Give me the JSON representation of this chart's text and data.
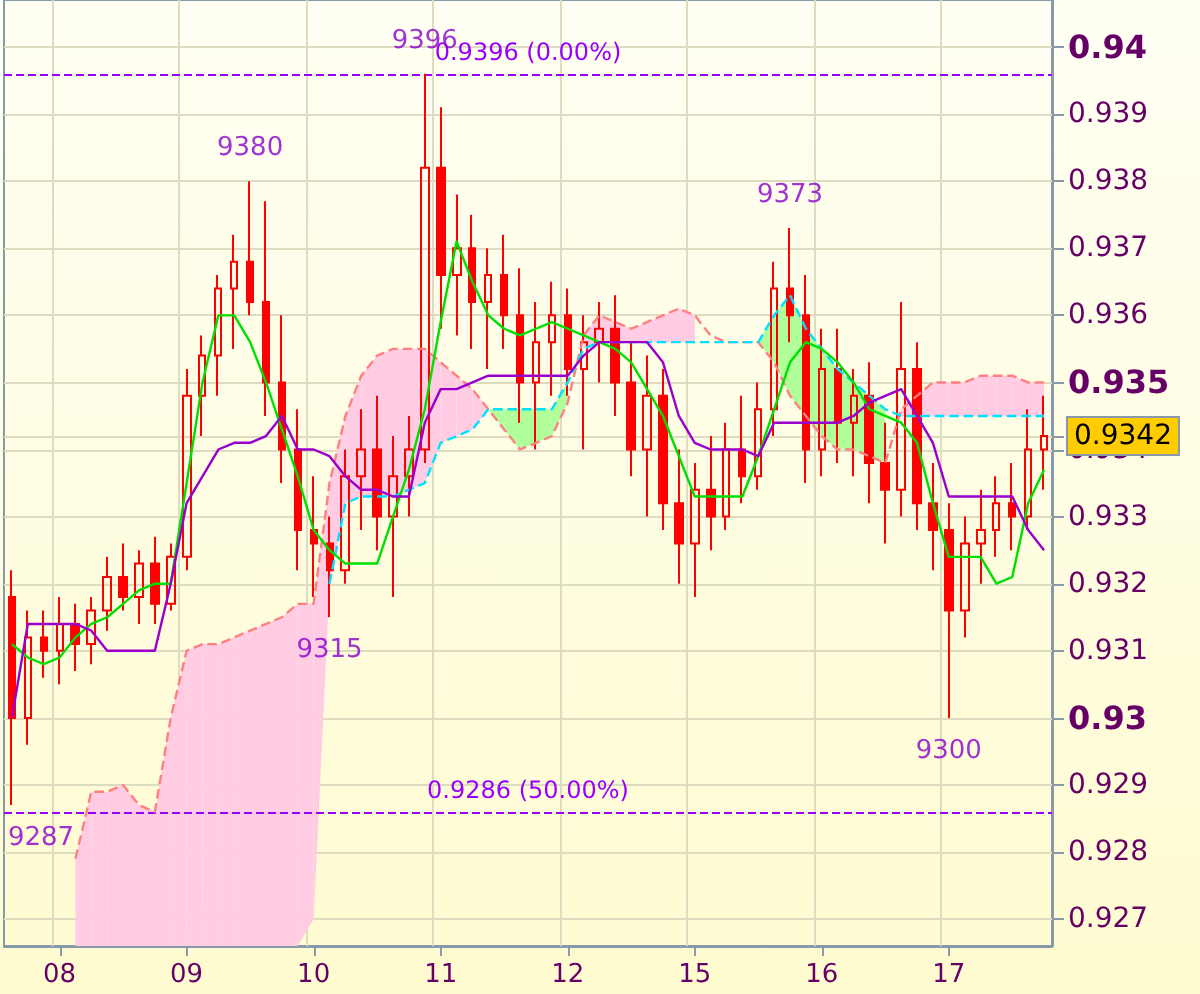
{
  "chart_data": {
    "type": "candlestick",
    "color": "#ff0000",
    "categories": [
      null,
      null,
      null,
      "08",
      null,
      null,
      null,
      null,
      null,
      null,
      null,
      "09",
      null,
      null,
      null,
      null,
      null,
      null,
      null,
      "10",
      null,
      null,
      null,
      null,
      null,
      null,
      null,
      "11",
      null,
      null,
      null,
      null,
      null,
      null,
      null,
      "12",
      null,
      null,
      null,
      null,
      null,
      null,
      null,
      "15",
      null,
      null,
      null,
      null,
      null,
      null,
      null,
      "16",
      null,
      null,
      null,
      null,
      null,
      null,
      null,
      "17",
      null,
      null,
      null,
      null,
      null,
      null
    ],
    "ohlc": [
      [
        0.9318,
        0.9322,
        0.9287,
        0.93
      ],
      [
        0.93,
        0.9316,
        0.9296,
        0.9312
      ],
      [
        0.9312,
        0.9316,
        0.9306,
        0.931
      ],
      [
        0.931,
        0.9318,
        0.9305,
        0.9314
      ],
      [
        0.9314,
        0.9317,
        0.9307,
        0.9311
      ],
      [
        0.9311,
        0.9318,
        0.9308,
        0.9316
      ],
      [
        0.9316,
        0.9324,
        0.9313,
        0.9321
      ],
      [
        0.9321,
        0.9326,
        0.9316,
        0.9318
      ],
      [
        0.9318,
        0.9325,
        0.9314,
        0.9323
      ],
      [
        0.9323,
        0.9327,
        0.9314,
        0.9317
      ],
      [
        0.9317,
        0.9326,
        0.9316,
        0.9324
      ],
      [
        0.9324,
        0.9352,
        0.9322,
        0.9348
      ],
      [
        0.9348,
        0.9357,
        0.9342,
        0.9354
      ],
      [
        0.9354,
        0.9366,
        0.9348,
        0.9364
      ],
      [
        0.9364,
        0.9372,
        0.9355,
        0.9368
      ],
      [
        0.9368,
        0.938,
        0.936,
        0.9362
      ],
      [
        0.9362,
        0.9377,
        0.9345,
        0.935
      ],
      [
        0.935,
        0.936,
        0.9335,
        0.934
      ],
      [
        0.934,
        0.9346,
        0.9322,
        0.9328
      ],
      [
        0.9328,
        0.9336,
        0.9318,
        0.9326
      ],
      [
        0.9326,
        0.933,
        0.9315,
        0.9322
      ],
      [
        0.9322,
        0.934,
        0.932,
        0.9336
      ],
      [
        0.9336,
        0.9346,
        0.9328,
        0.934
      ],
      [
        0.934,
        0.9348,
        0.9325,
        0.933
      ],
      [
        0.933,
        0.9342,
        0.9318,
        0.9336
      ],
      [
        0.9336,
        0.9345,
        0.933,
        0.934
      ],
      [
        0.934,
        0.9396,
        0.9338,
        0.9382
      ],
      [
        0.9382,
        0.9391,
        0.9358,
        0.9366
      ],
      [
        0.9366,
        0.9378,
        0.9357,
        0.937
      ],
      [
        0.937,
        0.9375,
        0.9355,
        0.9362
      ],
      [
        0.9362,
        0.937,
        0.9352,
        0.9366
      ],
      [
        0.9366,
        0.9372,
        0.9355,
        0.936
      ],
      [
        0.936,
        0.9367,
        0.9344,
        0.935
      ],
      [
        0.935,
        0.9362,
        0.934,
        0.9356
      ],
      [
        0.9356,
        0.9365,
        0.9348,
        0.936
      ],
      [
        0.936,
        0.9364,
        0.9348,
        0.9352
      ],
      [
        0.9352,
        0.936,
        0.934,
        0.9356
      ],
      [
        0.9356,
        0.9362,
        0.935,
        0.9358
      ],
      [
        0.9358,
        0.9363,
        0.9345,
        0.935
      ],
      [
        0.935,
        0.9356,
        0.9336,
        0.934
      ],
      [
        0.934,
        0.9354,
        0.933,
        0.9348
      ],
      [
        0.9348,
        0.9352,
        0.9328,
        0.9332
      ],
      [
        0.9332,
        0.934,
        0.932,
        0.9326
      ],
      [
        0.9326,
        0.9338,
        0.9318,
        0.9334
      ],
      [
        0.9334,
        0.9342,
        0.9325,
        0.933
      ],
      [
        0.933,
        0.9344,
        0.9328,
        0.934
      ],
      [
        0.934,
        0.9348,
        0.9332,
        0.9336
      ],
      [
        0.9336,
        0.935,
        0.9334,
        0.9346
      ],
      [
        0.9346,
        0.9368,
        0.9342,
        0.9364
      ],
      [
        0.9364,
        0.9373,
        0.9356,
        0.936
      ],
      [
        0.936,
        0.9366,
        0.9335,
        0.934
      ],
      [
        0.934,
        0.9358,
        0.9336,
        0.9352
      ],
      [
        0.9352,
        0.9358,
        0.9338,
        0.9344
      ],
      [
        0.9344,
        0.9352,
        0.9336,
        0.9348
      ],
      [
        0.9348,
        0.9353,
        0.9332,
        0.9338
      ],
      [
        0.9338,
        0.9344,
        0.9326,
        0.9334
      ],
      [
        0.9334,
        0.9362,
        0.933,
        0.9352
      ],
      [
        0.9352,
        0.9356,
        0.9328,
        0.9332
      ],
      [
        0.9332,
        0.9338,
        0.9322,
        0.9328
      ],
      [
        0.9328,
        0.9332,
        0.93,
        0.9316
      ],
      [
        0.9316,
        0.933,
        0.9312,
        0.9326
      ],
      [
        0.9326,
        0.9334,
        0.932,
        0.9328
      ],
      [
        0.9328,
        0.9336,
        0.9324,
        0.9332
      ],
      [
        0.9332,
        0.9338,
        0.9325,
        0.933
      ],
      [
        0.933,
        0.9346,
        0.9328,
        0.934
      ],
      [
        0.934,
        0.9348,
        0.9334,
        0.9342
      ]
    ],
    "series": [
      {
        "type": "line",
        "line_style": "dashed",
        "color": "#ff8080",
        "values": [
          null,
          null,
          null,
          null,
          0.9279,
          0.9289,
          0.9289,
          0.929,
          0.9287,
          0.9286,
          0.93,
          0.931,
          0.9311,
          0.9311,
          0.9312,
          0.9313,
          0.9314,
          0.9315,
          0.9317,
          0.9317,
          0.9335,
          0.9345,
          0.9351,
          0.9354,
          0.9355,
          0.9355,
          0.9355,
          0.9353,
          0.9351,
          0.9349,
          0.9346,
          0.9343,
          0.934,
          0.9341,
          0.9342,
          0.9347,
          0.9357,
          0.936,
          0.9359,
          0.9358,
          0.9359,
          0.936,
          0.9361,
          0.936,
          0.9357,
          0.9356,
          0.9356,
          0.9356,
          0.9353,
          0.9348,
          0.9345,
          0.9342,
          0.934,
          0.934,
          0.9339,
          0.9338,
          0.9346,
          0.9348,
          0.935,
          0.935,
          0.935,
          0.9351,
          0.9351,
          0.9351,
          0.935,
          0.935
        ],
        "lower": [
          null,
          null,
          null,
          null,
          0.9266,
          0.9266,
          0.9266,
          0.9266,
          0.9266,
          0.9266,
          0.9266,
          0.9266,
          0.9266,
          0.9266,
          0.9266,
          0.9266,
          0.9266,
          0.9266,
          0.9266,
          0.927,
          0.932,
          0.9332,
          0.9333,
          0.9333,
          0.9333,
          0.9334,
          0.9335,
          0.9341,
          0.9342,
          0.9343,
          0.9346,
          null,
          null,
          null,
          null,
          null,
          0.9355,
          0.9356,
          0.9356,
          0.9356,
          0.9356,
          0.9356,
          0.9356,
          0.9356,
          null,
          null,
          null,
          null,
          null,
          null,
          null,
          null,
          null,
          null,
          null,
          null,
          0.9345,
          0.9345,
          0.9345,
          0.9345,
          0.9345,
          0.9345,
          0.9345,
          0.9345,
          0.9345,
          0.9345
        ],
        "upper": [
          null,
          null,
          null,
          null,
          0.9279,
          0.9289,
          0.9289,
          0.929,
          0.9287,
          0.9286,
          0.93,
          0.931,
          0.9311,
          0.9311,
          0.9312,
          0.9313,
          0.9314,
          0.9315,
          0.9317,
          0.9317,
          0.9335,
          0.9345,
          0.9351,
          0.9354,
          0.9355,
          0.9355,
          0.9355,
          0.9353,
          0.9351,
          0.9349,
          0.9346,
          null,
          null,
          null,
          null,
          null,
          0.9357,
          0.936,
          0.9359,
          0.9358,
          0.9359,
          0.936,
          0.9361,
          0.936,
          null,
          null,
          null,
          null,
          null,
          null,
          null,
          null,
          null,
          null,
          null,
          null,
          0.9346,
          0.9348,
          0.935,
          0.935,
          0.935,
          0.9351,
          0.9351,
          0.9351,
          0.935,
          0.935
        ]
      },
      {
        "type": "line",
        "line_style": "dashed",
        "color": "#00e0ff",
        "values": [
          null,
          null,
          null,
          null,
          null,
          null,
          null,
          null,
          null,
          null,
          null,
          null,
          null,
          null,
          null,
          null,
          null,
          null,
          null,
          null,
          0.932,
          0.9332,
          0.9333,
          0.9333,
          0.9333,
          0.9334,
          0.9335,
          0.9341,
          0.9342,
          0.9343,
          0.9346,
          0.9346,
          0.9346,
          0.9346,
          0.9346,
          0.935,
          0.9355,
          0.9356,
          0.9356,
          0.9356,
          0.9356,
          0.9356,
          0.9356,
          0.9356,
          0.9356,
          0.9356,
          0.9356,
          0.9356,
          0.936,
          0.9363,
          0.9358,
          0.9355,
          0.9352,
          0.935,
          0.9348,
          0.9346,
          0.9345,
          0.9345,
          0.9345,
          0.9345,
          0.9345,
          0.9345,
          0.9345,
          0.9345,
          0.9345,
          0.9345
        ],
        "lower": [
          null,
          null,
          null,
          null,
          null,
          null,
          null,
          null,
          null,
          null,
          null,
          null,
          null,
          null,
          null,
          null,
          null,
          null,
          null,
          null,
          null,
          null,
          null,
          null,
          null,
          null,
          null,
          null,
          null,
          null,
          0.9346,
          0.9343,
          0.934,
          0.9341,
          0.9342,
          0.9347,
          null,
          null,
          null,
          null,
          null,
          null,
          null,
          null,
          null,
          null,
          null,
          0.9356,
          0.9353,
          0.9348,
          0.9345,
          0.9342,
          0.934,
          0.934,
          0.9339,
          0.9338,
          null,
          null,
          null,
          null,
          null,
          null,
          null,
          null,
          null,
          null
        ],
        "upper": [
          null,
          null,
          null,
          null,
          null,
          null,
          null,
          null,
          null,
          null,
          null,
          null,
          null,
          null,
          null,
          null,
          null,
          null,
          null,
          null,
          null,
          null,
          null,
          null,
          null,
          null,
          null,
          null,
          null,
          null,
          0.9346,
          0.9346,
          0.9346,
          0.9346,
          0.9346,
          0.935,
          null,
          null,
          null,
          null,
          null,
          null,
          null,
          null,
          null,
          null,
          null,
          0.9356,
          0.936,
          0.9363,
          0.9358,
          0.9355,
          0.9352,
          0.935,
          0.9348,
          0.9346,
          null,
          null,
          null,
          null,
          null,
          null,
          null,
          null,
          null,
          null
        ]
      },
      {
        "type": "line",
        "line_style": "solid",
        "color": "#00e000",
        "values": [
          0.9311,
          0.9309,
          0.9308,
          0.9309,
          0.9312,
          0.9314,
          0.9315,
          0.9317,
          0.9319,
          0.932,
          0.932,
          0.9335,
          0.935,
          0.936,
          0.936,
          0.9356,
          0.935,
          0.9343,
          0.9336,
          0.9328,
          0.9325,
          0.9323,
          0.9323,
          0.9323,
          0.933,
          0.9337,
          0.9346,
          0.9359,
          0.9371,
          0.9365,
          0.936,
          0.9358,
          0.9357,
          0.9358,
          0.9359,
          0.9358,
          0.9357,
          0.9356,
          0.9355,
          0.9353,
          0.9349,
          0.9345,
          0.9339,
          0.9333,
          0.9333,
          0.9333,
          0.9333,
          0.9339,
          0.9346,
          0.9353,
          0.9356,
          0.9355,
          0.9353,
          0.935,
          0.9346,
          0.9345,
          0.9344,
          0.9341,
          0.9332,
          0.9324,
          0.9324,
          0.9324,
          0.932,
          0.9321,
          0.9332,
          0.9337
        ]
      },
      {
        "type": "line",
        "line_style": "solid",
        "color": "#9900cc",
        "values": [
          0.93,
          0.9314,
          0.9314,
          0.9314,
          0.9314,
          0.9313,
          0.931,
          0.931,
          0.931,
          0.931,
          0.932,
          0.9332,
          0.9336,
          0.934,
          0.9341,
          0.9341,
          0.9342,
          0.9345,
          0.934,
          0.934,
          0.9339,
          0.9336,
          0.9334,
          0.9334,
          0.9333,
          0.9333,
          0.9344,
          0.9349,
          0.9349,
          0.935,
          0.9351,
          0.9351,
          0.9351,
          0.9351,
          0.9351,
          0.9351,
          0.9354,
          0.9356,
          0.9356,
          0.9356,
          0.9356,
          0.9353,
          0.9345,
          0.9341,
          0.934,
          0.934,
          0.934,
          0.9339,
          0.9344,
          0.9344,
          0.9344,
          0.9344,
          0.9344,
          0.9345,
          0.9347,
          0.9348,
          0.9349,
          0.9345,
          0.9341,
          0.9333,
          0.9333,
          0.9333,
          0.9333,
          0.9333,
          0.9328,
          0.9325
        ]
      }
    ],
    "ylim": [
      0.9266,
      0.9407
    ],
    "yticks": [
      0.927,
      0.928,
      0.929,
      0.93,
      0.931,
      0.932,
      0.933,
      0.934,
      {
        "value": 0.9342,
        "label": "0.9342"
      },
      0.935,
      0.936,
      0.937,
      0.938,
      0.939,
      0.94
    ],
    "grid": true,
    "ref_lines": [
      {
        "axis": "y",
        "value": 0.9396,
        "label": "0.9396 (0.00%)",
        "color": "#9900ff",
        "line_style": "dashed"
      },
      {
        "axis": "y",
        "value": 0.9286,
        "label": "0.9286 (50.00%)",
        "color": "#9900ff",
        "line_style": "dashed"
      }
    ],
    "annotations": [
      {
        "text": "9396",
        "y": 0.9396
      },
      {
        "text": "9380",
        "y": 0.938
      },
      {
        "text": "9373",
        "y": 0.9373
      },
      {
        "text": "9315",
        "y": 0.9315
      },
      {
        "text": "9300",
        "y": 0.93
      },
      {
        "text": "9287",
        "y": 0.9287
      }
    ]
  }
}
